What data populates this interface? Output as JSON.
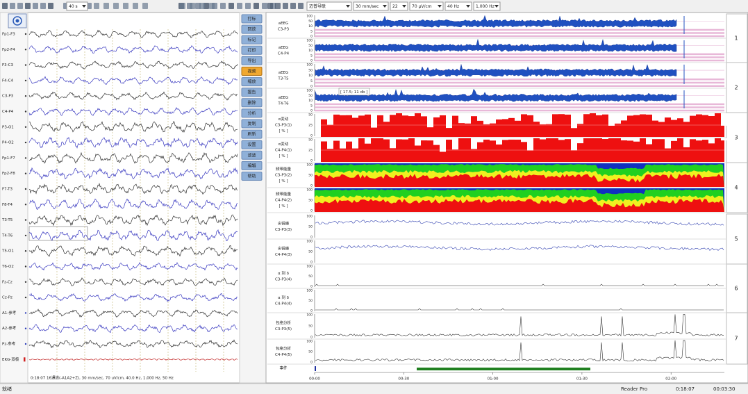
{
  "toolbar": {
    "page_length": "40 s",
    "montage": "迈普导联",
    "speed": "30 mm/sec",
    "channel_count": "22",
    "sensitivity": "70 µV/cm",
    "lowpass": "40 Hz",
    "sample_rate": "1,000 Hz"
  },
  "eeg": {
    "channels": [
      "Fp1-F3",
      "Fp2-F4",
      "F3-C3",
      "F4-C4",
      "C3-P3",
      "C4-P4",
      "P3-O1",
      "P4-O2",
      "Fp1-F7",
      "Fp2-F8",
      "F7-T3",
      "F8-T4",
      "T3-T5",
      "T4-T6",
      "T5-O1",
      "T6-O2",
      "Fz-Cz",
      "Cz-Pz",
      "A1-参考",
      "A2-参考",
      "Pz-参考",
      "EKG-双极"
    ],
    "info": "0:18:07 16通道(-A1A2+Z), 30 mm/sec, 70 uV/cm, 40.0 Hz, 1,000 Hz, 50 Hz"
  },
  "side_buttons": [
    "打标",
    "回放",
    "标记",
    "打印",
    "导出",
    "视频",
    "缩放",
    "报告",
    "删除",
    "分析",
    "复制",
    "刷新",
    "设置",
    "滤波",
    "编辑",
    "帮助"
  ],
  "trends": {
    "groups": [
      {
        "number": "1",
        "ticks": [
          "100",
          "50",
          "10",
          "5",
          "0"
        ],
        "rows": [
          [
            "aEEG",
            "C3-P3"
          ],
          [
            "aEEG",
            "C4-P4"
          ]
        ]
      },
      {
        "number": "2",
        "ticks": [
          "100",
          "50",
          "10",
          "5",
          "0"
        ],
        "rows": [
          [
            "aEEG",
            "T3-T5"
          ],
          [
            "aEEG",
            "T4-T6"
          ]
        ]
      },
      {
        "number": "3",
        "ticks": [
          "50",
          "25",
          "0"
        ],
        "rows": [
          [
            "α变动",
            "C3-P3(1)",
            "[ % ]"
          ],
          [
            "α变动",
            "C4-P4(1)",
            "[ % ]"
          ]
        ]
      },
      {
        "number": "4",
        "ticks": [
          "100",
          "50",
          "0"
        ],
        "rows": [
          [
            "频带能量",
            "C3-P3(2)",
            "[ % ]"
          ],
          [
            "频带能量",
            "C4-P4(2)",
            "[ % ]"
          ]
        ]
      },
      {
        "number": "5",
        "ticks": [
          "100",
          "50",
          "0"
        ],
        "rows": [
          [
            "尖锐峰",
            "C3-P3(3)"
          ],
          [
            "尖锐峰",
            "C4-P4(3)"
          ]
        ]
      },
      {
        "number": "6",
        "ticks": [
          "100",
          "50",
          "0"
        ],
        "rows": [
          [
            "α 到 δ",
            "C3-P3(4)"
          ],
          [
            "α 到 δ",
            "C4-P4(4)"
          ]
        ]
      },
      {
        "number": "7",
        "ticks": [
          "100",
          "50",
          "0"
        ],
        "rows": [
          [
            "包络分析",
            "C3-P3(5)"
          ],
          [
            "包络分析",
            "C4-P4(5)"
          ]
        ]
      }
    ],
    "tooltip": "[ 17.5; 11 db ]",
    "event_label": "事件",
    "time_labels": [
      "00:00",
      "00:30",
      "01:00",
      "01:30",
      "02:00"
    ]
  },
  "status": [
    "就绪",
    "Reader Pro",
    "0:18:07",
    "00:03:30"
  ]
}
